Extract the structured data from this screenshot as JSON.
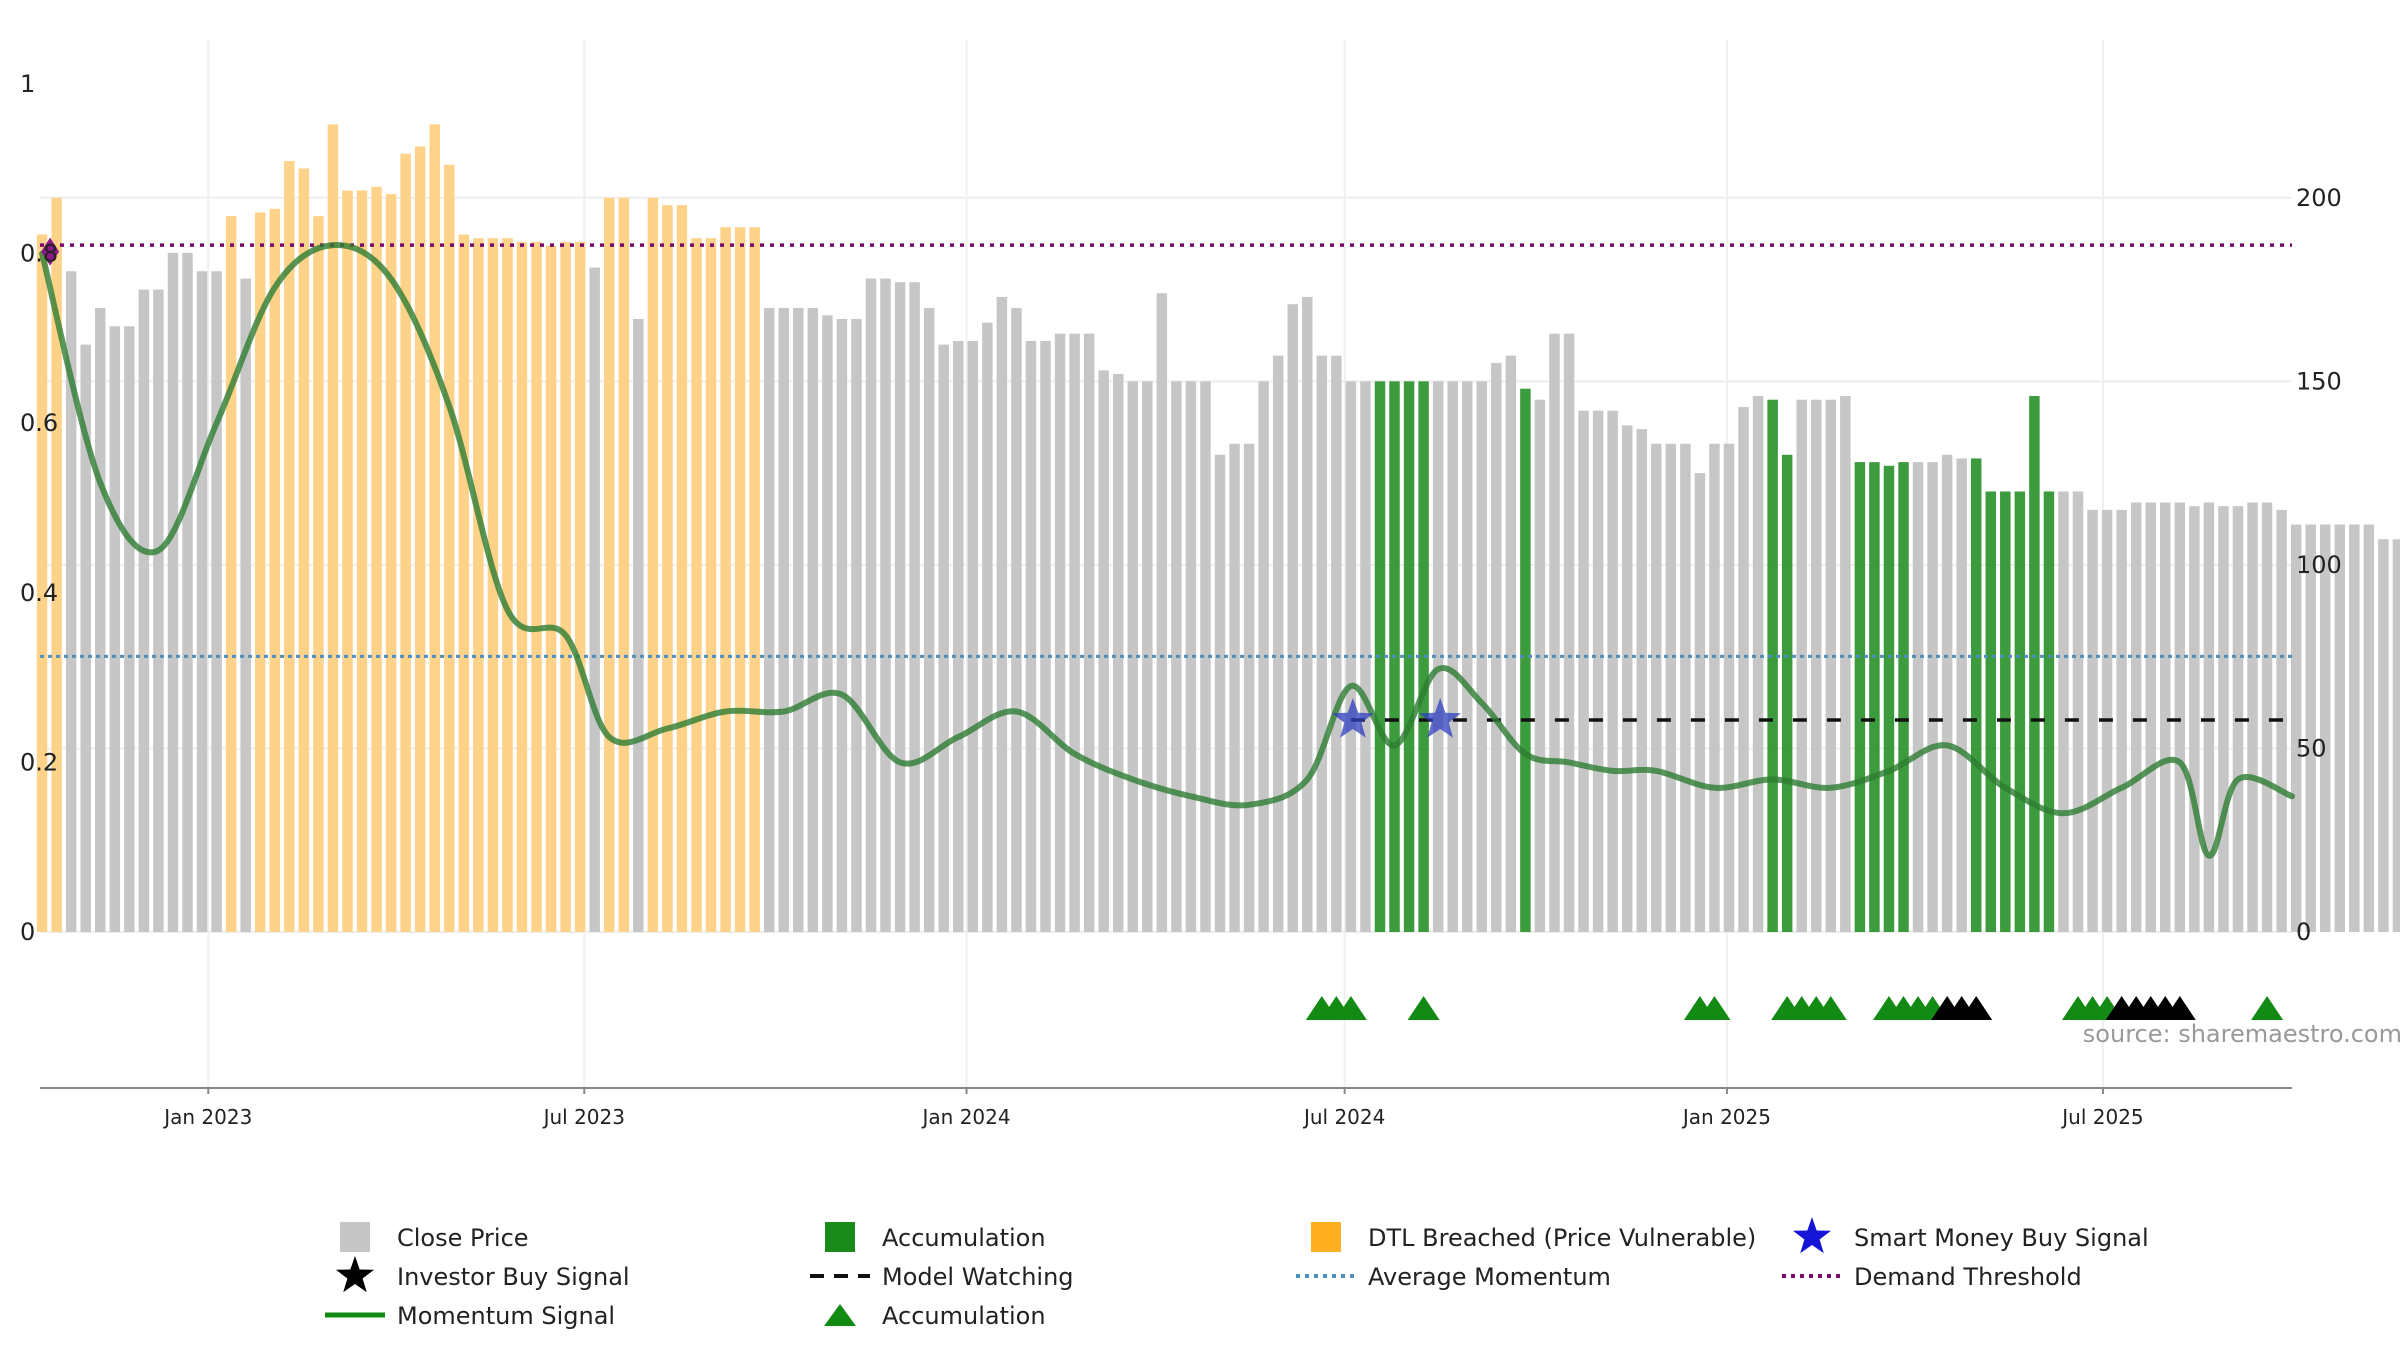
{
  "chart_data": {
    "type": "bar",
    "colors": {
      "close_price": "#c6c6c6",
      "accumulation": "#1a8a1a",
      "dtl_breached": "#ffd28a",
      "momentum": "#2e7d32",
      "average_momentum": "#4f8fbf",
      "demand_threshold": "#7a0a6e",
      "model_watching": "#111111",
      "smart_money": "#2f3fbf",
      "investor_buy": "#000000",
      "accum_marker": "#138a13"
    },
    "x_ticks": [
      "Jan 2023",
      "Jul 2023",
      "Jan 2024",
      "Jul 2024",
      "Jan 2025",
      "Jul 2025"
    ],
    "x_tick_dates": [
      "2023-01-01",
      "2023-07-01",
      "2024-01-01",
      "2024-07-01",
      "2025-01-01",
      "2025-07-01"
    ],
    "x_range": [
      "2022-10-12",
      "2025-09-30"
    ],
    "left_axis": {
      "ticks": [
        "0",
        "0.2",
        "0.4",
        "0.6",
        "0.8",
        "1"
      ],
      "ylim": [
        0,
        1
      ]
    },
    "right_axis": {
      "ticks": [
        "0",
        "50",
        "100",
        "150",
        "200"
      ],
      "ylim": [
        0,
        231
      ]
    },
    "bars": {
      "start_date": "2022-10-13",
      "step_days": 7,
      "values": [
        190,
        200,
        180,
        160,
        170,
        165,
        165,
        175,
        175,
        185,
        185,
        180,
        180,
        195,
        178,
        196,
        197,
        210,
        208,
        195,
        220,
        202,
        202,
        203,
        201,
        212,
        214,
        220,
        209,
        190,
        189,
        189,
        189,
        188,
        188,
        187,
        188,
        188,
        181,
        200,
        200,
        167,
        200,
        198,
        198,
        189,
        189,
        192,
        192,
        192,
        170,
        170,
        170,
        170,
        168,
        167,
        167,
        178,
        178,
        177,
        177,
        170,
        160,
        161,
        161,
        166,
        173,
        170,
        161,
        161,
        163,
        163,
        163,
        153,
        152,
        150,
        150,
        174,
        150,
        150,
        150,
        130,
        133,
        133,
        150,
        157,
        171,
        173,
        157,
        157,
        150,
        150,
        150,
        150,
        150,
        150,
        150,
        150,
        150,
        150,
        155,
        157,
        148,
        145,
        163,
        163,
        142,
        142,
        142,
        138,
        137,
        133,
        133,
        133,
        125,
        133,
        133,
        143,
        146,
        145,
        130,
        145,
        145,
        145,
        146,
        128,
        128,
        127,
        128,
        128,
        128,
        130,
        129,
        129,
        120,
        120,
        120,
        146,
        120,
        120,
        120,
        115,
        115,
        115,
        117,
        117,
        117,
        117,
        116,
        117,
        116,
        116,
        117,
        117,
        115,
        111,
        111,
        111,
        111,
        111,
        111,
        107,
        107,
        107,
        107,
        107,
        107
      ],
      "categories": [
        "D",
        "D",
        "C",
        "C",
        "C",
        "C",
        "C",
        "C",
        "C",
        "C",
        "C",
        "C",
        "C",
        "D",
        "C",
        "D",
        "D",
        "D",
        "D",
        "D",
        "D",
        "D",
        "D",
        "D",
        "D",
        "D",
        "D",
        "D",
        "D",
        "D",
        "D",
        "D",
        "D",
        "D",
        "D",
        "D",
        "D",
        "D",
        "C",
        "D",
        "D",
        "C",
        "D",
        "D",
        "D",
        "D",
        "D",
        "D",
        "D",
        "D",
        "C",
        "C",
        "C",
        "C",
        "C",
        "C",
        "C",
        "C",
        "C",
        "C",
        "C",
        "C",
        "C",
        "C",
        "C",
        "C",
        "C",
        "C",
        "C",
        "C",
        "C",
        "C",
        "C",
        "C",
        "C",
        "C",
        "C",
        "C",
        "C",
        "C",
        "C",
        "C",
        "C",
        "C",
        "C",
        "C",
        "C",
        "C",
        "C",
        "C",
        "C",
        "C",
        "A",
        "A",
        "A",
        "A",
        "C",
        "C",
        "C",
        "C",
        "C",
        "C",
        "A",
        "C",
        "C",
        "C",
        "C",
        "C",
        "C",
        "C",
        "C",
        "C",
        "C",
        "C",
        "C",
        "C",
        "C",
        "C",
        "C",
        "A",
        "A",
        "C",
        "C",
        "C",
        "C",
        "A",
        "A",
        "A",
        "A",
        "C",
        "C",
        "C",
        "C",
        "A",
        "A",
        "A",
        "A",
        "A",
        "A",
        "C",
        "C",
        "C",
        "C",
        "C",
        "C",
        "C",
        "C",
        "C",
        "C",
        "C",
        "C",
        "C",
        "C",
        "C",
        "C",
        "C",
        "C",
        "C",
        "C",
        "C",
        "C",
        "C",
        "C",
        "C",
        "C",
        "C",
        "C"
      ]
    },
    "momentum_signal": {
      "dates": [
        "2022-10-13",
        "2022-11-10",
        "2022-12-08",
        "2023-01-05",
        "2023-02-02",
        "2023-03-02",
        "2023-03-30",
        "2023-04-27",
        "2023-05-25",
        "2023-06-22",
        "2023-07-13",
        "2023-08-10",
        "2023-09-07",
        "2023-10-05",
        "2023-11-02",
        "2023-11-30",
        "2023-12-28",
        "2024-01-25",
        "2024-02-22",
        "2024-03-21",
        "2024-04-18",
        "2024-05-16",
        "2024-06-13",
        "2024-07-04",
        "2024-07-25",
        "2024-08-15",
        "2024-09-05",
        "2024-09-26",
        "2024-10-17",
        "2024-11-07",
        "2024-11-28",
        "2024-12-26",
        "2025-01-23",
        "2025-02-20",
        "2025-03-20",
        "2025-04-17",
        "2025-05-15",
        "2025-06-12",
        "2025-07-10",
        "2025-08-07",
        "2025-08-21",
        "2025-09-04",
        "2025-09-30"
      ],
      "values": [
        0.8,
        0.53,
        0.45,
        0.6,
        0.76,
        0.81,
        0.77,
        0.62,
        0.38,
        0.35,
        0.23,
        0.24,
        0.26,
        0.26,
        0.28,
        0.2,
        0.23,
        0.26,
        0.21,
        0.18,
        0.16,
        0.15,
        0.18,
        0.29,
        0.22,
        0.31,
        0.27,
        0.21,
        0.2,
        0.19,
        0.19,
        0.17,
        0.18,
        0.17,
        0.19,
        0.22,
        0.17,
        0.14,
        0.17,
        0.2,
        0.09,
        0.18,
        0.16
      ]
    },
    "average_momentum": 0.325,
    "demand_threshold": 0.81,
    "model_watching": {
      "value": 0.25,
      "from": "2024-07-04",
      "to": "2025-09-30"
    },
    "smart_money_buy_signals": [
      {
        "date": "2024-07-04",
        "value": 0.25
      },
      {
        "date": "2024-08-15",
        "value": 0.25
      }
    ],
    "accumulation_markers": [
      "2024-06-20",
      "2024-06-27",
      "2024-07-04",
      "2024-08-08",
      "2024-12-19",
      "2024-12-26",
      "2025-01-30",
      "2025-02-06",
      "2025-02-13",
      "2025-02-20",
      "2025-03-20",
      "2025-03-27",
      "2025-04-03",
      "2025-04-10",
      "2025-06-19",
      "2025-06-26",
      "2025-07-03",
      "2025-09-18"
    ],
    "investor_buy_markers": [
      "2025-04-17",
      "2025-04-24",
      "2025-05-01",
      "2025-07-10",
      "2025-07-17",
      "2025-07-24",
      "2025-07-31",
      "2025-08-07"
    ],
    "source": "source: sharemaestro.com",
    "legend": [
      {
        "label": "Close Price",
        "symbol": "square",
        "color": "#c6c6c6"
      },
      {
        "label": "Accumulation",
        "symbol": "square",
        "color": "#1a8a1a"
      },
      {
        "label": "DTL Breached (Price Vulnerable)",
        "symbol": "square",
        "color": "#ffb020"
      },
      {
        "label": "Smart Money Buy Signal",
        "symbol": "star",
        "color": "#1515d8"
      },
      {
        "label": "Investor Buy Signal",
        "symbol": "star",
        "color": "#000000"
      },
      {
        "label": "Model Watching",
        "symbol": "dash",
        "color": "#111111"
      },
      {
        "label": "Average Momentum",
        "symbol": "dot",
        "color": "#4f8fbf"
      },
      {
        "label": "Demand Threshold",
        "symbol": "dot",
        "color": "#7a0a6e"
      },
      {
        "label": "Momentum Signal",
        "symbol": "line",
        "color": "#138a13"
      },
      {
        "label": "Accumulation",
        "symbol": "triangle",
        "color": "#138a13"
      }
    ]
  }
}
